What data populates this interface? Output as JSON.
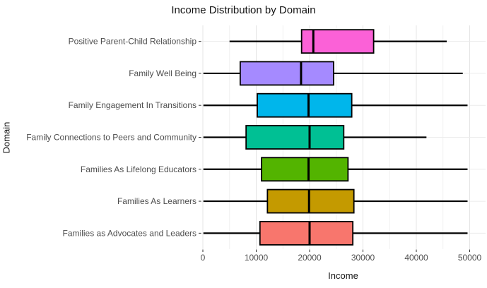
{
  "page": {
    "background": "#ffffff",
    "text_color": "#141414",
    "tick_label_color": "#4d4d4d",
    "tick_mark_color": "#333333",
    "grid_major_color": "#e4e4e4",
    "grid_minor_color": "#f1f1f1",
    "grid_horizontal_color": "#ebebeb"
  },
  "chart_data": {
    "type": "boxplot",
    "orientation": "horizontal",
    "title": "Income Distribution by Domain",
    "xlabel": "Income",
    "ylabel": "Domain",
    "xlim": [
      0,
      50000
    ],
    "x_ticks": [
      0,
      10000,
      20000,
      30000,
      40000,
      50000
    ],
    "x_tick_labels": [
      "0",
      "10000",
      "20000",
      "30000",
      "40000",
      "50000"
    ],
    "x_minor_step": 5000,
    "grid": "vertical major+minor, horizontal major per category",
    "legend": "none",
    "box_outline_color": "#000000",
    "median_color": "#000000",
    "whisker_color": "#000000",
    "series": [
      {
        "label": "Positive Parent-Child Relationship",
        "fill": "#FB61D7",
        "whisker_min": 5000,
        "q1": 18500,
        "median": 20700,
        "q3": 32000,
        "whisker_max": 45700
      },
      {
        "label": "Family Well Being",
        "fill": "#A58AFF",
        "whisker_min": 100,
        "q1": 7000,
        "median": 18400,
        "q3": 24500,
        "whisker_max": 48700
      },
      {
        "label": "Family Engagement In Transitions",
        "fill": "#00B6EB",
        "whisker_min": 100,
        "q1": 10200,
        "median": 19800,
        "q3": 27900,
        "whisker_max": 49600
      },
      {
        "label": "Family Connections to Peers and Community",
        "fill": "#00C094",
        "whisker_min": 100,
        "q1": 8100,
        "median": 20000,
        "q3": 26400,
        "whisker_max": 41900
      },
      {
        "label": "Families As Lifelong Educators",
        "fill": "#53B400",
        "whisker_min": 100,
        "q1": 11000,
        "median": 19800,
        "q3": 27200,
        "whisker_max": 49600
      },
      {
        "label": "Families As Learners",
        "fill": "#C49A00",
        "whisker_min": 100,
        "q1": 12100,
        "median": 19900,
        "q3": 28300,
        "whisker_max": 49600
      },
      {
        "label": "Families as Advocates and Leaders",
        "fill": "#F8766D",
        "whisker_min": 100,
        "q1": 10700,
        "median": 20000,
        "q3": 28100,
        "whisker_max": 49600
      }
    ]
  }
}
